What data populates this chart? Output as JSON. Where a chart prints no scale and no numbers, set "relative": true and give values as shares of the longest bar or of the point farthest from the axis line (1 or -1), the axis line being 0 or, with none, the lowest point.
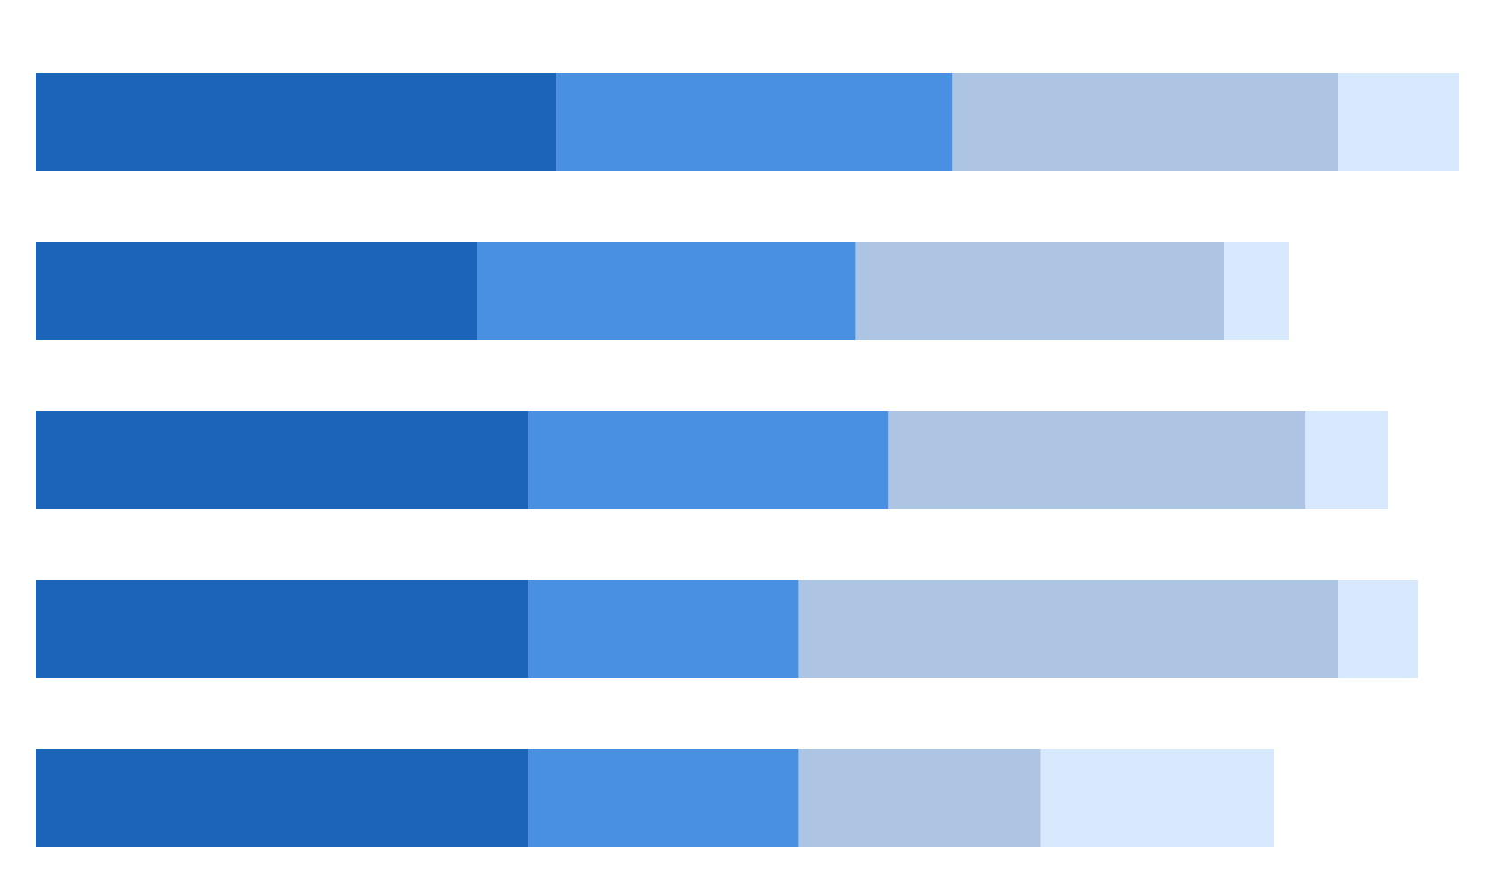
{
  "chart_data": {
    "type": "bar",
    "orientation": "horizontal",
    "stacked": true,
    "relative": true,
    "categories": [
      null,
      null,
      null,
      null,
      null
    ],
    "series": [
      {
        "color": "#1b64b9",
        "values": [
          0.366,
          0.31,
          0.346,
          0.346,
          0.346
        ]
      },
      {
        "color": "#4a90e2",
        "values": [
          0.278,
          0.266,
          0.253,
          0.19,
          0.19
        ]
      },
      {
        "color": "#adc4e2",
        "values": [
          0.271,
          0.259,
          0.293,
          0.379,
          0.17
        ]
      },
      {
        "color": "#d8e8fd",
        "values": [
          0.085,
          0.045,
          0.058,
          0.056,
          0.164
        ]
      }
    ]
  }
}
